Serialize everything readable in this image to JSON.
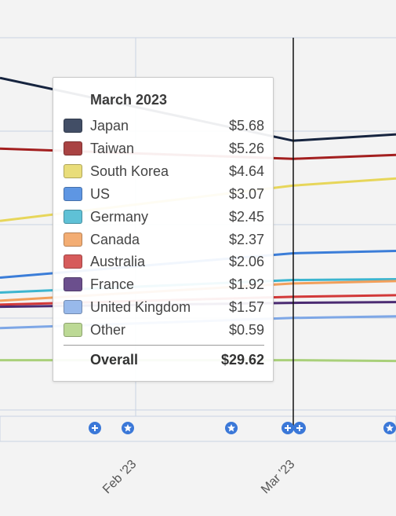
{
  "chart_data": {
    "type": "line",
    "x": [
      "Feb '23",
      "Mar '23"
    ],
    "series": [
      {
        "name": "Japan",
        "color": "#16243f",
        "values": [
          null,
          5.68
        ]
      },
      {
        "name": "Taiwan",
        "color": "#a31f1f",
        "values": [
          null,
          5.26
        ]
      },
      {
        "name": "South Korea",
        "color": "#e7d65a",
        "values": [
          null,
          4.64
        ]
      },
      {
        "name": "US",
        "color": "#3b7dd8",
        "values": [
          null,
          3.07
        ]
      },
      {
        "name": "Germany",
        "color": "#3cb5cf",
        "values": [
          null,
          2.45
        ]
      },
      {
        "name": "Canada",
        "color": "#f19f5b",
        "values": [
          null,
          2.37
        ]
      },
      {
        "name": "Australia",
        "color": "#d23939",
        "values": [
          null,
          2.06
        ]
      },
      {
        "name": "France",
        "color": "#4b2b72",
        "values": [
          null,
          1.92
        ]
      },
      {
        "name": "United Kingdom",
        "color": "#7ea7e6",
        "values": [
          null,
          1.57
        ]
      },
      {
        "name": "Other",
        "color": "#a9d07a",
        "values": [
          null,
          0.59
        ]
      }
    ],
    "grid": true,
    "legend": "tooltip"
  },
  "tooltip": {
    "title": "March 2023",
    "rows": [
      {
        "label": "Japan",
        "value": "$5.68",
        "color": "#424e66"
      },
      {
        "label": "Taiwan",
        "value": "$5.26",
        "color": "#a94343"
      },
      {
        "label": "South Korea",
        "value": "$4.64",
        "color": "#e9dd7a"
      },
      {
        "label": "US",
        "value": "$3.07",
        "color": "#5e96e3"
      },
      {
        "label": "Germany",
        "value": "$2.45",
        "color": "#5fc1d6"
      },
      {
        "label": "Canada",
        "value": "$2.37",
        "color": "#f3ad73"
      },
      {
        "label": "Australia",
        "value": "$2.06",
        "color": "#d65b5b"
      },
      {
        "label": "France",
        "value": "$1.92",
        "color": "#6b4f8d"
      },
      {
        "label": "United Kingdom",
        "value": "$1.57",
        "color": "#98b9eb"
      },
      {
        "label": "Other",
        "value": "$0.59",
        "color": "#bcd995"
      }
    ],
    "total_label": "Overall",
    "total_value": "$29.62"
  },
  "x_axis": {
    "labels": [
      "Feb '23",
      "Mar '23"
    ]
  },
  "event_markers": [
    {
      "icon": "plus-icon",
      "month": "Jan '23"
    },
    {
      "icon": "star-icon",
      "month": "Feb '23"
    },
    {
      "icon": "star-icon",
      "month": "Feb '23"
    },
    {
      "icon": "plus-icon",
      "month": "Mar '23"
    },
    {
      "icon": "plus-icon",
      "month": "Mar '23"
    },
    {
      "icon": "star-icon",
      "month": "Mar '23"
    }
  ],
  "colors": {
    "marker": "#3b78d8",
    "grid": "#c9d3e3",
    "crosshair": "#111111"
  }
}
